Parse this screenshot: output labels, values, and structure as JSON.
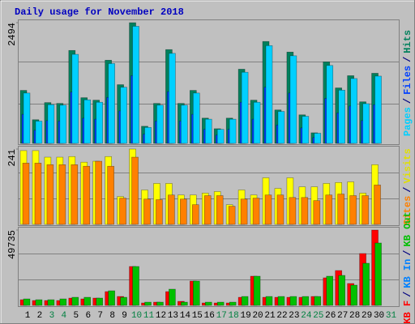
{
  "chart_data": [
    {
      "type": "bar",
      "title": "Daily usage for November 2018",
      "ylim": [
        0,
        2494
      ],
      "yticks": [
        2494
      ],
      "bar_order": "reverse",
      "legend_separator": "/",
      "series": [
        {
          "name": "Pages",
          "color": "#00d0ff",
          "values": [
            1040,
            460,
            800,
            790,
            1840,
            900,
            850,
            1650,
            1160,
            2420,
            330,
            790,
            1860,
            790,
            1040,
            500,
            290,
            500,
            1470,
            850,
            2020,
            660,
            1810,
            560,
            210,
            1610,
            1100,
            1340,
            820,
            1390,
            null
          ]
        },
        {
          "name": "Files",
          "color": "#0040ff",
          "values": [
            600,
            270,
            470,
            460,
            1060,
            520,
            500,
            950,
            670,
            1400,
            190,
            460,
            1070,
            460,
            600,
            290,
            170,
            290,
            850,
            500,
            1160,
            380,
            1040,
            320,
            120,
            930,
            630,
            770,
            470,
            800,
            null
          ]
        },
        {
          "name": "Hits",
          "color": "#00805c",
          "values": [
            1095,
            489,
            843,
            826,
            1921,
            944,
            893,
            1719,
            1213,
            2494,
            354,
            826,
            1938,
            826,
            1095,
            522,
            303,
            522,
            1533,
            893,
            2106,
            691,
            1887,
            590,
            219,
            1685,
            1146,
            1399,
            859,
            1449,
            null
          ]
        }
      ]
    },
    {
      "type": "bar",
      "ylim": [
        0,
        241
      ],
      "yticks": [
        241
      ],
      "bar_order": "reverse",
      "legend_separator": "/",
      "series": [
        {
          "name": "Sites",
          "color": "#ff8000",
          "values": [
            196,
            196,
            191,
            191,
            191,
            186,
            202,
            186,
            84,
            215,
            81,
            79,
            94,
            81,
            63,
            92,
            92,
            58,
            81,
            84,
            94,
            94,
            86,
            86,
            76,
            94,
            97,
            92,
            92,
            126,
            null
          ]
        },
        {
          "name": "Visits",
          "color": "#ffff00",
          "values": [
            236,
            236,
            215,
            215,
            217,
            199,
            202,
            217,
            89,
            241,
            110,
            131,
            131,
            94,
            94,
            100,
            105,
            63,
            110,
            94,
            149,
            115,
            149,
            120,
            120,
            131,
            134,
            136,
            100,
            191,
            null
          ]
        }
      ]
    },
    {
      "type": "bar",
      "ylim": [
        0,
        49735
      ],
      "yticks": [
        49735
      ],
      "bar_order": "forward",
      "legend_separator": "/",
      "categories": [
        "1",
        "2",
        "3",
        "4",
        "5",
        "6",
        "7",
        "8",
        "9",
        "10",
        "11",
        "12",
        "13",
        "14",
        "15",
        "16",
        "17",
        "18",
        "19",
        "20",
        "21",
        "22",
        "23",
        "24",
        "25",
        "26",
        "27",
        "28",
        "29",
        "30",
        "31"
      ],
      "category_colors": [
        "#000000",
        "#000000",
        "#008040",
        "#008040",
        "#000000",
        "#000000",
        "#000000",
        "#000000",
        "#000000",
        "#008040",
        "#008040",
        "#000000",
        "#000000",
        "#000000",
        "#000000",
        "#000000",
        "#008040",
        "#008040",
        "#000000",
        "#000000",
        "#000000",
        "#000000",
        "#000000",
        "#008040",
        "#008040",
        "#000000",
        "#000000",
        "#000000",
        "#000000",
        "#000000",
        "#008040"
      ],
      "series": [
        {
          "name": "KB F",
          "color": "#ff0000",
          "values": [
            3745,
            3210,
            3210,
            3210,
            4815,
            4280,
            4815,
            9095,
            5885,
            25680,
            1605,
            2140,
            9095,
            2675,
            16050,
            1605,
            1605,
            1605,
            5350,
            19260,
            5350,
            5350,
            5350,
            5350,
            5885,
            18190,
            23005,
            14445,
            34240,
            49735,
            null
          ]
        },
        {
          "name": "KB In",
          "color": "#0080ff",
          "values": [
            0,
            0,
            0,
            0,
            0,
            0,
            0,
            0,
            0,
            0,
            0,
            0,
            0,
            0,
            0,
            0,
            0,
            0,
            0,
            0,
            0,
            0,
            0,
            0,
            0,
            0,
            0,
            0,
            0,
            0,
            null
          ]
        },
        {
          "name": "KB Out",
          "color": "#00c000",
          "values": [
            4280,
            3745,
            3745,
            4280,
            5350,
            5350,
            4815,
            9630,
            5350,
            25680,
            2140,
            2140,
            10700,
            2140,
            16050,
            2140,
            2140,
            2140,
            5885,
            19260,
            5885,
            5885,
            5885,
            5885,
            5885,
            19260,
            19795,
            13375,
            27820,
            41195,
            null
          ]
        }
      ]
    }
  ]
}
